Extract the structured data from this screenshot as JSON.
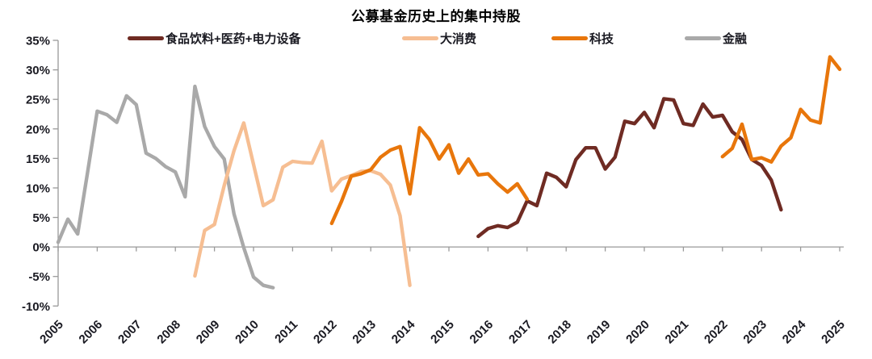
{
  "title": "公募基金历史上的集中持股",
  "chart_data": {
    "type": "line",
    "title": "公募基金历史上的集中持股",
    "xlabel": "",
    "ylabel": "",
    "grid": false,
    "legend_position": "top",
    "x_range": [
      2005,
      2025
    ],
    "y_range": [
      -10,
      35
    ],
    "x_tick_years": [
      2005,
      2006,
      2007,
      2008,
      2009,
      2010,
      2011,
      2012,
      2013,
      2014,
      2015,
      2016,
      2017,
      2018,
      2019,
      2020,
      2021,
      2022,
      2023,
      2024,
      2025
    ],
    "y_ticks": [
      {
        "value": 35,
        "label": "35%"
      },
      {
        "value": 30,
        "label": "30%"
      },
      {
        "value": 25,
        "label": "25%"
      },
      {
        "value": 20,
        "label": "20%"
      },
      {
        "value": 15,
        "label": "15%"
      },
      {
        "value": 10,
        "label": "10%"
      },
      {
        "value": 5,
        "label": "5%"
      },
      {
        "value": 0,
        "label": "0%"
      },
      {
        "value": -5,
        "label": "-5%"
      },
      {
        "value": -10,
        "label": "-10%"
      }
    ],
    "unit": "percent",
    "series": [
      {
        "name": "食品饮料+医药+电力设备",
        "color": "#6F2B23",
        "z": 2,
        "segments": [
          [
            [
              2015.75,
              1.8
            ],
            [
              2016.0,
              3.1
            ],
            [
              2016.25,
              3.6
            ],
            [
              2016.5,
              3.3
            ],
            [
              2016.75,
              4.2
            ],
            [
              2017.0,
              7.8
            ],
            [
              2017.25,
              7.0
            ],
            [
              2017.5,
              12.5
            ],
            [
              2017.75,
              11.8
            ],
            [
              2018.0,
              10.2
            ],
            [
              2018.25,
              14.8
            ],
            [
              2018.5,
              16.8
            ],
            [
              2018.75,
              16.8
            ],
            [
              2019.0,
              13.2
            ],
            [
              2019.25,
              15.2
            ],
            [
              2019.5,
              21.3
            ],
            [
              2019.75,
              20.9
            ],
            [
              2020.0,
              22.8
            ],
            [
              2020.25,
              20.2
            ],
            [
              2020.5,
              25.1
            ],
            [
              2020.75,
              24.9
            ],
            [
              2021.0,
              20.9
            ],
            [
              2021.25,
              20.6
            ],
            [
              2021.5,
              24.2
            ],
            [
              2021.75,
              22.0
            ],
            [
              2022.0,
              22.3
            ],
            [
              2022.25,
              19.5
            ],
            [
              2022.5,
              18.2
            ],
            [
              2022.75,
              14.8
            ],
            [
              2023.0,
              13.8
            ],
            [
              2023.25,
              11.3
            ],
            [
              2023.5,
              6.3
            ]
          ]
        ]
      },
      {
        "name": "大消费",
        "color": "#F6BE92",
        "z": 1,
        "segments": [
          [
            [
              2008.5,
              -4.9
            ],
            [
              2008.75,
              2.8
            ],
            [
              2009.0,
              3.8
            ],
            [
              2009.25,
              10.4
            ],
            [
              2009.5,
              16.3
            ],
            [
              2009.75,
              21.0
            ],
            [
              2010.0,
              14.0
            ],
            [
              2010.25,
              7.0
            ],
            [
              2010.5,
              8.0
            ],
            [
              2010.75,
              13.5
            ],
            [
              2011.0,
              14.5
            ],
            [
              2011.25,
              14.3
            ],
            [
              2011.5,
              14.2
            ],
            [
              2011.75,
              17.9
            ],
            [
              2012.0,
              9.5
            ],
            [
              2012.25,
              11.5
            ],
            [
              2012.5,
              12.1
            ],
            [
              2012.75,
              12.8
            ],
            [
              2013.0,
              12.9
            ],
            [
              2013.25,
              12.3
            ],
            [
              2013.5,
              10.5
            ],
            [
              2013.75,
              5.3
            ],
            [
              2014.0,
              -6.5
            ]
          ]
        ]
      },
      {
        "name": "科技",
        "color": "#E8760B",
        "z": 3,
        "segments": [
          [
            [
              2012.0,
              4.0
            ],
            [
              2012.25,
              7.7
            ],
            [
              2012.5,
              12.0
            ],
            [
              2012.75,
              12.4
            ],
            [
              2013.0,
              13.1
            ],
            [
              2013.25,
              15.2
            ],
            [
              2013.5,
              16.4
            ],
            [
              2013.75,
              17.0
            ],
            [
              2014.0,
              9.0
            ],
            [
              2014.25,
              20.2
            ],
            [
              2014.5,
              18.2
            ],
            [
              2014.75,
              14.9
            ],
            [
              2015.0,
              17.3
            ],
            [
              2015.25,
              12.5
            ],
            [
              2015.5,
              14.9
            ],
            [
              2015.75,
              12.2
            ],
            [
              2016.0,
              12.4
            ],
            [
              2016.25,
              10.7
            ],
            [
              2016.5,
              9.3
            ],
            [
              2016.75,
              10.7
            ],
            [
              2017.0,
              8.1
            ]
          ],
          [
            [
              2022.0,
              15.3
            ],
            [
              2022.25,
              16.7
            ],
            [
              2022.5,
              20.8
            ],
            [
              2022.75,
              14.8
            ],
            [
              2023.0,
              15.1
            ],
            [
              2023.25,
              14.4
            ],
            [
              2023.5,
              17.1
            ],
            [
              2023.75,
              18.5
            ],
            [
              2024.0,
              23.3
            ],
            [
              2024.25,
              21.5
            ],
            [
              2024.5,
              21.0
            ],
            [
              2024.75,
              32.2
            ],
            [
              2025.0,
              30.1
            ]
          ]
        ]
      },
      {
        "name": "金融",
        "color": "#A9A9A9",
        "z": 0,
        "segments": [
          [
            [
              2005.0,
              0.8
            ],
            [
              2005.25,
              4.7
            ],
            [
              2005.5,
              2.2
            ],
            [
              2005.75,
              12.5
            ],
            [
              2006.0,
              23.0
            ],
            [
              2006.25,
              22.4
            ],
            [
              2006.5,
              21.1
            ],
            [
              2006.75,
              25.6
            ],
            [
              2007.0,
              24.1
            ],
            [
              2007.25,
              15.9
            ],
            [
              2007.5,
              15.0
            ],
            [
              2007.75,
              13.6
            ],
            [
              2008.0,
              12.7
            ],
            [
              2008.25,
              8.5
            ],
            [
              2008.5,
              27.2
            ],
            [
              2008.75,
              20.4
            ],
            [
              2009.0,
              17.0
            ],
            [
              2009.25,
              14.9
            ],
            [
              2009.5,
              5.6
            ],
            [
              2009.75,
              -0.1
            ],
            [
              2010.0,
              -5.1
            ],
            [
              2010.25,
              -6.5
            ],
            [
              2010.5,
              -6.9
            ]
          ]
        ]
      }
    ],
    "axis_color": "#999999",
    "label_color": "#1a1a22"
  }
}
